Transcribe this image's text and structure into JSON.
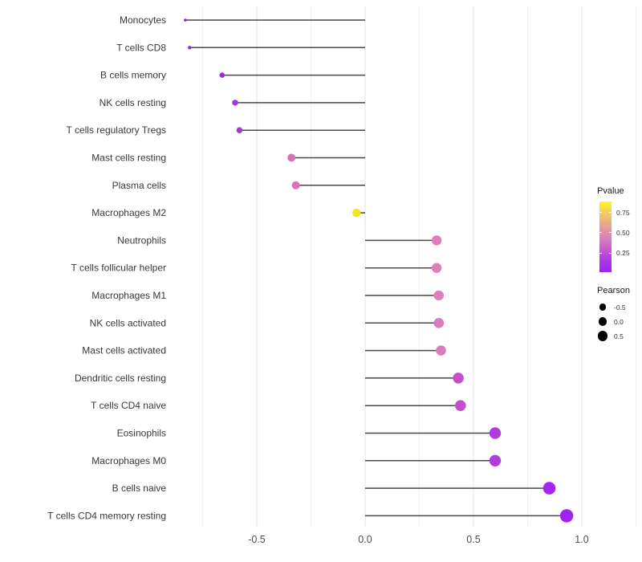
{
  "figure": {
    "background": "#ffffff",
    "title": ""
  },
  "chart_data": {
    "type": "lollipop",
    "orientation": "horizontal",
    "title": "",
    "xlabel": "",
    "ylabel": "",
    "x_tick_labels": [
      "-0.5",
      "0.0",
      "0.5",
      "1.0"
    ],
    "x_tick_values": [
      -0.5,
      0.0,
      0.5,
      1.0
    ],
    "xlim": [
      -0.88,
      1.28
    ],
    "grid": "vertical only, major at ticks, minor every 0.25",
    "grid_minor_values": [
      -0.75,
      -0.25,
      0.25,
      0.75,
      1.25
    ],
    "stem_color": "#474747",
    "baseline_value": 0,
    "points": [
      {
        "category": "Monocytes",
        "pearson": -0.83,
        "pvalue_approx": 0.03,
        "color": "#8921E0",
        "radius": 1.8
      },
      {
        "category": "T cells CD8",
        "pearson": -0.81,
        "pvalue_approx": 0.05,
        "color": "#9223E2",
        "radius": 2.2
      },
      {
        "category": "B cells memory",
        "pearson": -0.66,
        "pvalue_approx": 0.08,
        "color": "#9C2BE2",
        "radius": 3.3
      },
      {
        "category": "NK cells resting",
        "pearson": -0.6,
        "pvalue_approx": 0.12,
        "color": "#A336DE",
        "radius": 3.7
      },
      {
        "category": "T cells regulatory  Tregs",
        "pearson": -0.58,
        "pvalue_approx": 0.14,
        "color": "#A63AD8",
        "radius": 3.8
      },
      {
        "category": "Mast cells resting",
        "pearson": -0.34,
        "pvalue_approx": 0.45,
        "color": "#D674B3",
        "radius": 5.0
      },
      {
        "category": "Plasma cells",
        "pearson": -0.32,
        "pvalue_approx": 0.45,
        "color": "#D776B5",
        "radius": 5.0
      },
      {
        "category": "Macrophages M2",
        "pearson": -0.04,
        "pvalue_approx": 0.85,
        "color": "#F3E51E",
        "radius": 5.2
      },
      {
        "category": "Neutrophils",
        "pearson": 0.33,
        "pvalue_approx": 0.48,
        "color": "#DD80BA",
        "radius": 6.2
      },
      {
        "category": "T cells follicular helper",
        "pearson": 0.33,
        "pvalue_approx": 0.48,
        "color": "#DD80BA",
        "radius": 6.2
      },
      {
        "category": "Macrophages M1",
        "pearson": 0.34,
        "pvalue_approx": 0.47,
        "color": "#DC7EBB",
        "radius": 6.2
      },
      {
        "category": "NK cells activated",
        "pearson": 0.34,
        "pvalue_approx": 0.46,
        "color": "#DB7CBD",
        "radius": 6.3
      },
      {
        "category": "Mast cells activated",
        "pearson": 0.35,
        "pvalue_approx": 0.46,
        "color": "#DB7CBD",
        "radius": 6.3
      },
      {
        "category": "Dendritic cells resting",
        "pearson": 0.43,
        "pvalue_approx": 0.25,
        "color": "#C251CB",
        "radius": 6.8
      },
      {
        "category": "T cells CD4 naive",
        "pearson": 0.44,
        "pvalue_approx": 0.25,
        "color": "#C250CC",
        "radius": 6.8
      },
      {
        "category": "Eosinophils",
        "pearson": 0.6,
        "pvalue_approx": 0.15,
        "color": "#B13DDC",
        "radius": 7.2
      },
      {
        "category": "Macrophages M0",
        "pearson": 0.6,
        "pvalue_approx": 0.15,
        "color": "#B03CDD",
        "radius": 7.2
      },
      {
        "category": "B cells naive",
        "pearson": 0.85,
        "pvalue_approx": 0.06,
        "color": "#A527EB",
        "radius": 7.8
      },
      {
        "category": "T cells CD4 memory resting",
        "pearson": 0.93,
        "pvalue_approx": 0.04,
        "color": "#A122EE",
        "radius": 8.2
      }
    ],
    "legend_pvalue": {
      "title": "Pvalue",
      "tick_labels": [
        "0.75",
        "0.50",
        "0.25"
      ],
      "value_top": 0.88,
      "value_bottom": 0.01,
      "gradient": [
        "#FBF61E",
        "#F2CB63",
        "#E8A58F",
        "#DB84B4",
        "#C75ECD",
        "#AC37E5",
        "#9C26EE"
      ]
    },
    "legend_pearson": {
      "title": "Pearson",
      "dot_color": "#000000",
      "items": [
        {
          "label": "-0.5",
          "diameter": 8.6
        },
        {
          "label": "0.0",
          "diameter": 10.6
        },
        {
          "label": "0.5",
          "diameter": 12.6
        }
      ]
    }
  }
}
